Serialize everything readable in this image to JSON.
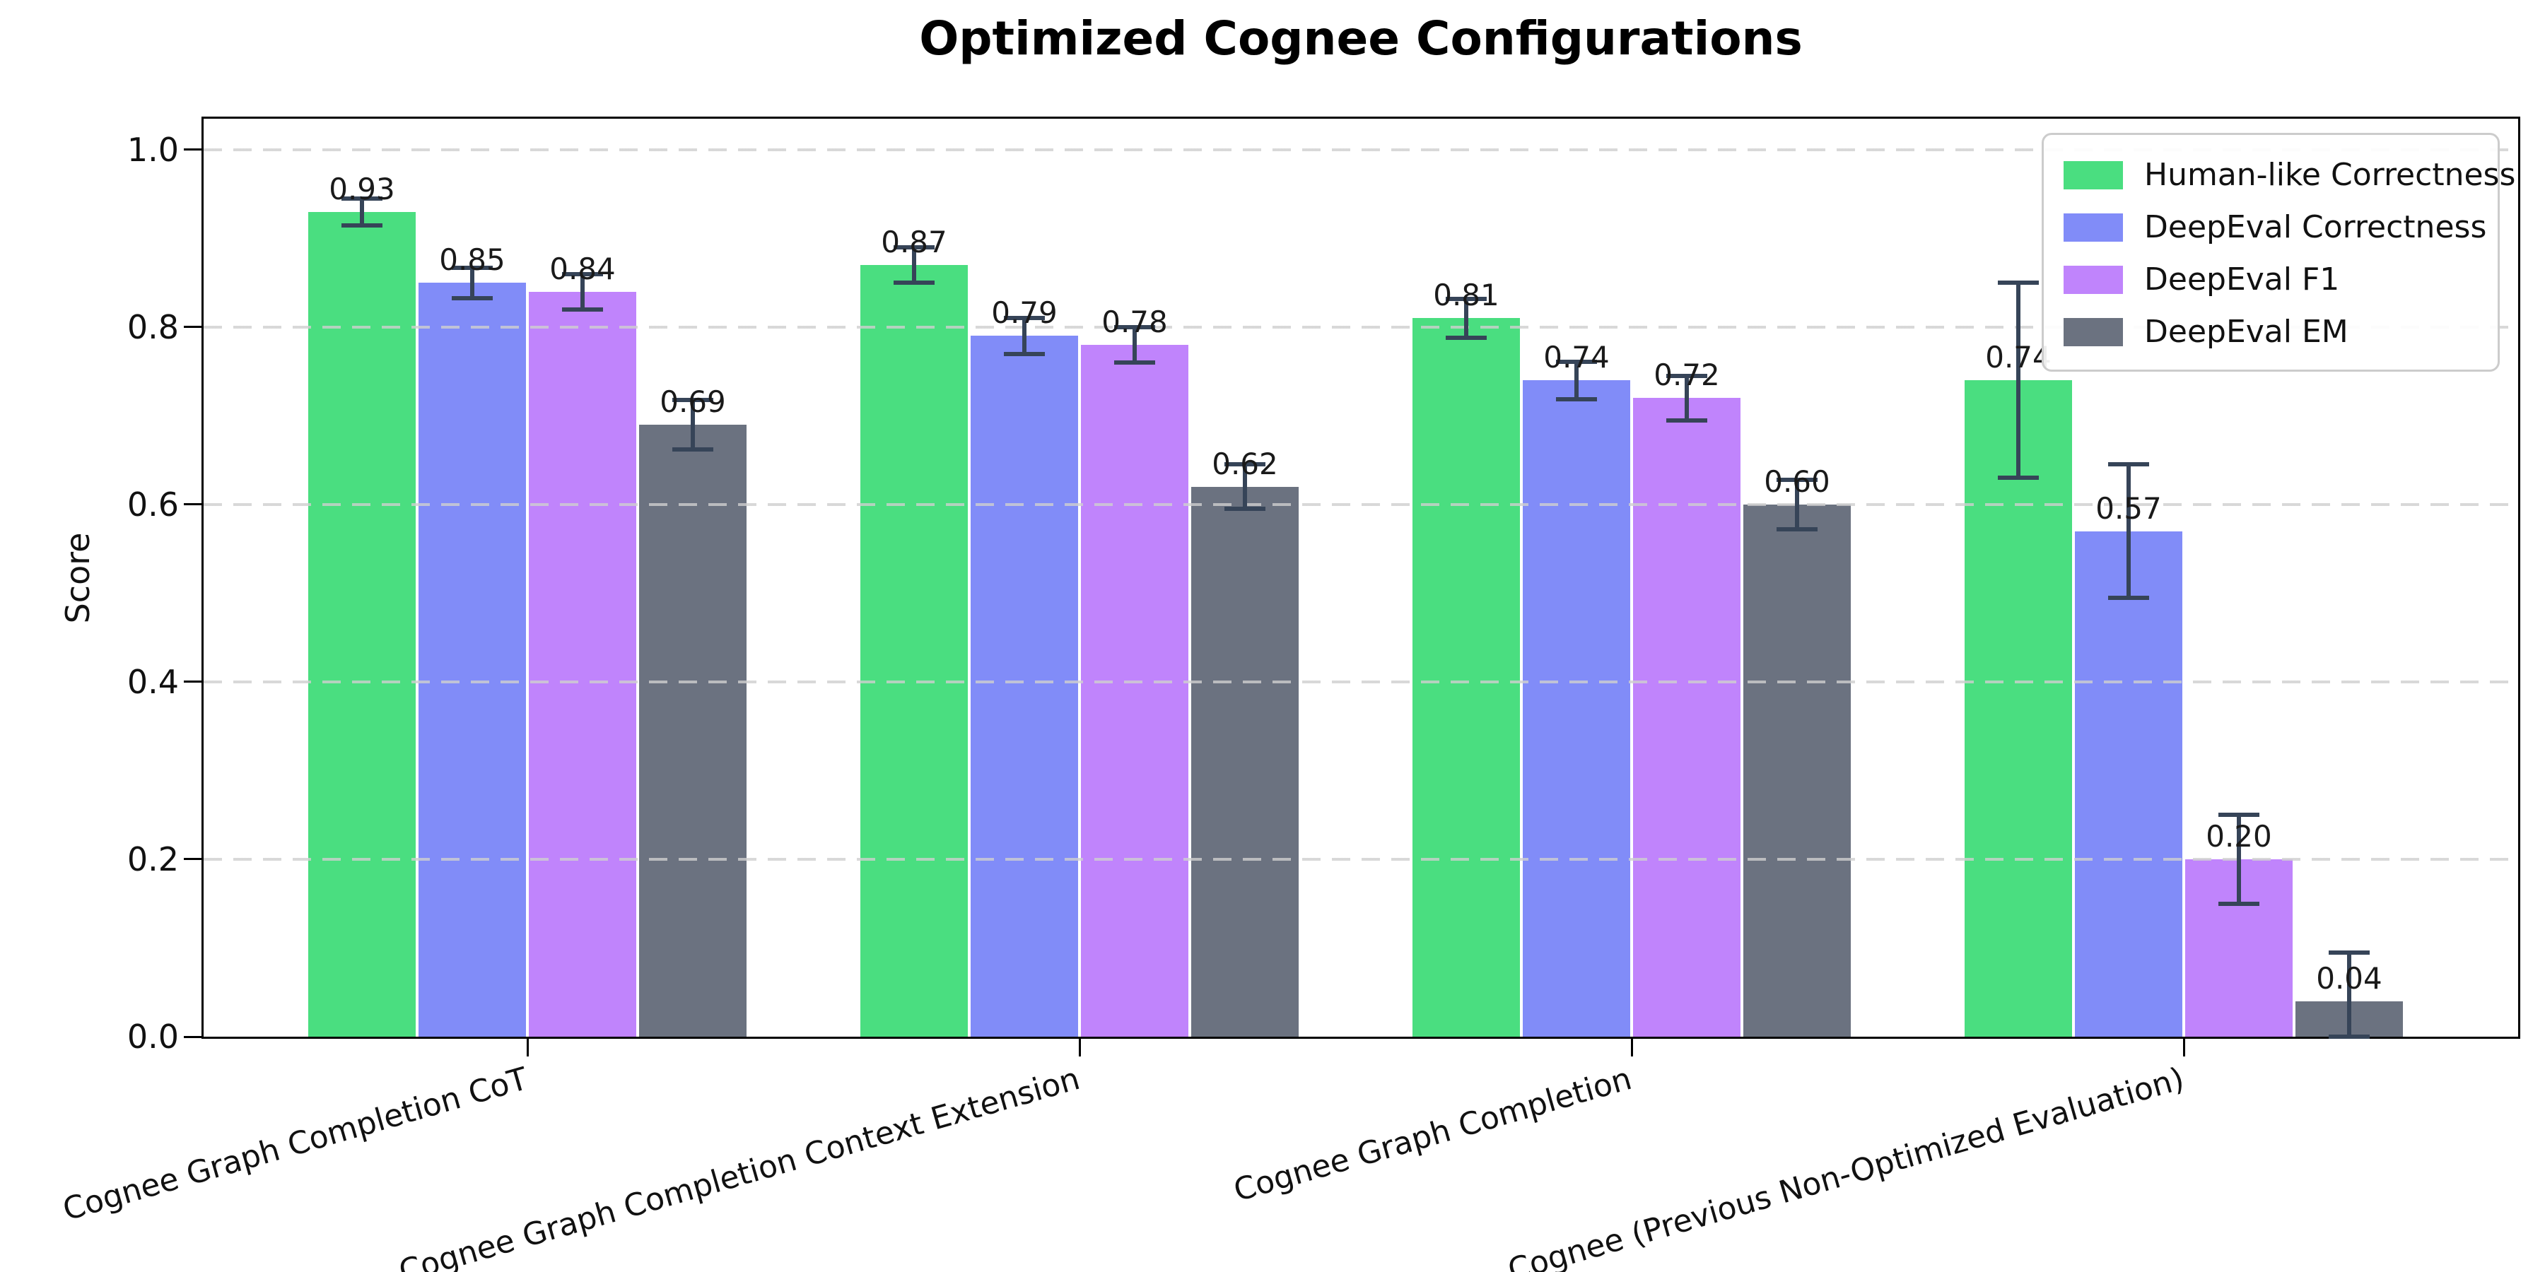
{
  "chart_data": {
    "type": "bar",
    "title": "Optimized Cognee Configurations",
    "xlabel": "",
    "ylabel": "Score",
    "ylim": [
      0,
      1.035
    ],
    "yticks": [
      0.0,
      0.2,
      0.4,
      0.6,
      0.8,
      1.0
    ],
    "grid": "horizontal-dashed",
    "grid_color": "#cfcfcf",
    "legend_position": "upper-right",
    "errorbar_color": "#364458",
    "categories": [
      "Cognee Graph Completion CoT",
      "Cognee Graph Completion Context Extension",
      "Cognee Graph Completion",
      "Cognee (Previous Non-Optimized Evaluation)"
    ],
    "series": [
      {
        "name": "Human-like Correctness",
        "color": "#4ade80",
        "values": [
          0.93,
          0.87,
          0.81,
          0.74
        ],
        "errors": [
          0.015,
          0.02,
          0.022,
          0.11
        ]
      },
      {
        "name": "DeepEval Correctness",
        "color": "#818cf8",
        "values": [
          0.85,
          0.79,
          0.74,
          0.57
        ],
        "errors": [
          0.017,
          0.02,
          0.021,
          0.075
        ]
      },
      {
        "name": "DeepEval F1",
        "color": "#c084fc",
        "values": [
          0.84,
          0.78,
          0.72,
          0.2
        ],
        "errors": [
          0.02,
          0.02,
          0.025,
          0.05
        ]
      },
      {
        "name": "DeepEval EM",
        "color": "#6b7280",
        "values": [
          0.69,
          0.62,
          0.6,
          0.04
        ],
        "errors": [
          0.028,
          0.025,
          0.028,
          0.055
        ]
      }
    ],
    "bar_value_labels": [
      [
        "0.93",
        "0.87",
        "0.81",
        "0.74"
      ],
      [
        "0.85",
        "0.79",
        "0.74",
        "0.57"
      ],
      [
        "0.84",
        "0.78",
        "0.72",
        "0.20"
      ],
      [
        "0.69",
        "0.62",
        "0.60",
        "0.04"
      ]
    ]
  }
}
